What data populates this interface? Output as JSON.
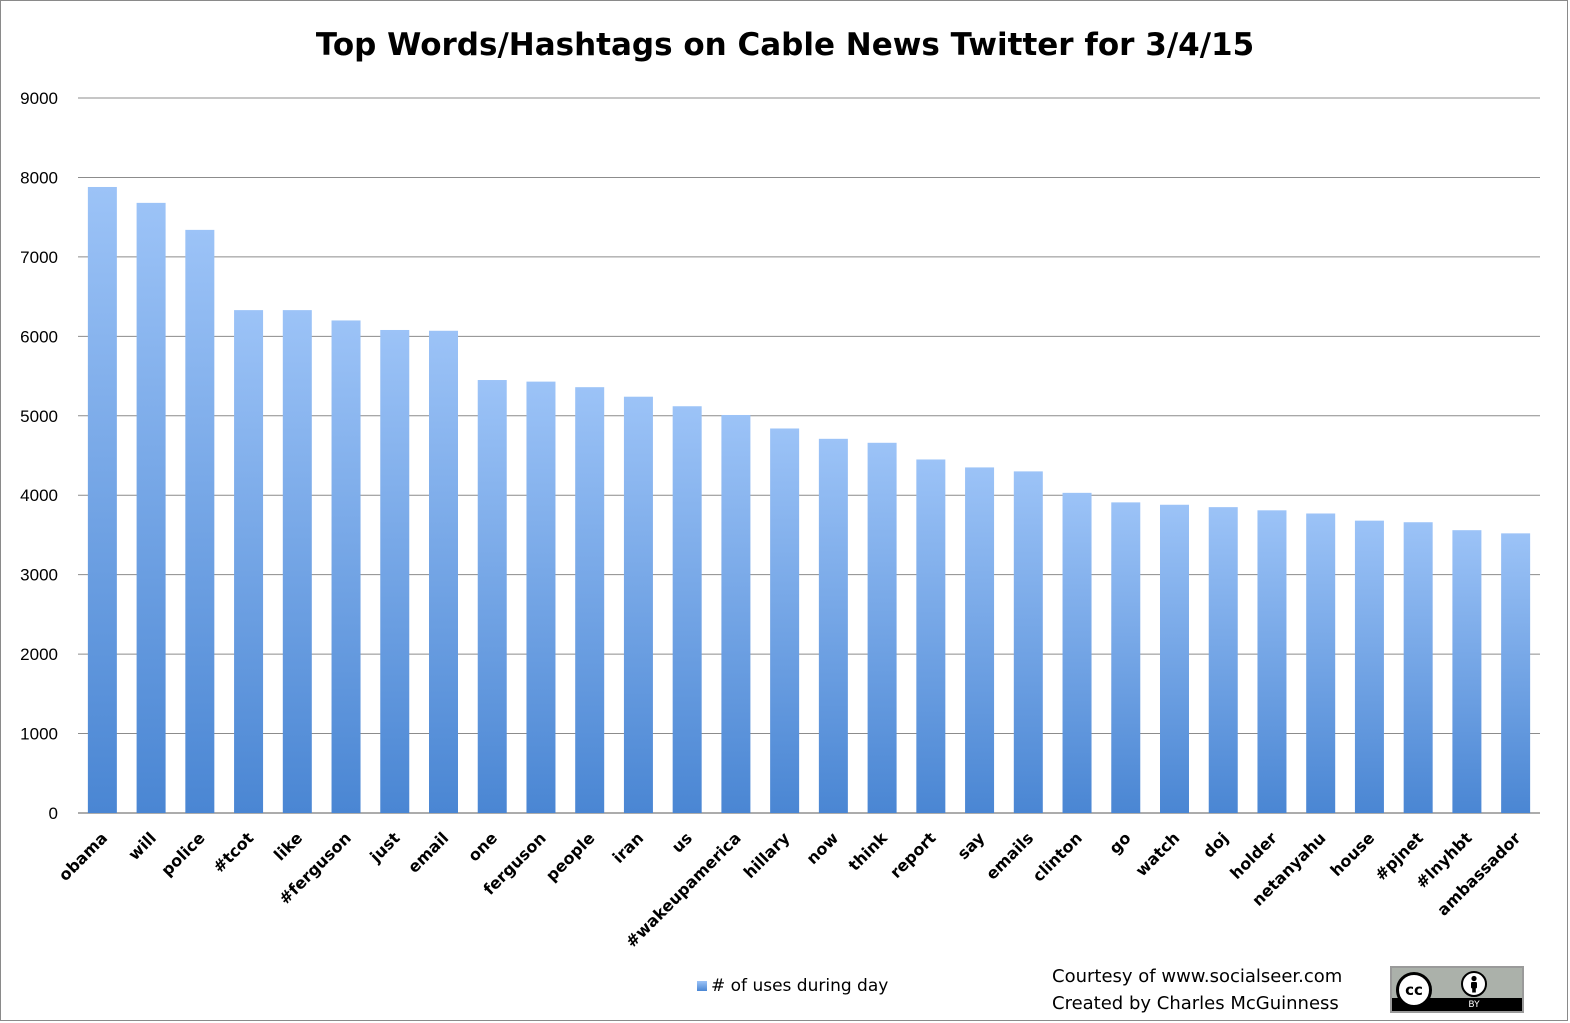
{
  "chart_data": {
    "type": "bar",
    "title": "Top Words/Hashtags on Cable News Twitter for 3/4/15",
    "categories": [
      "obama",
      "will",
      "police",
      "#tcot",
      "like",
      "#ferguson",
      "just",
      "email",
      "one",
      "ferguson",
      "people",
      "iran",
      "us",
      "#wakeupamerica",
      "hillary",
      "now",
      "think",
      "report",
      "say",
      "emails",
      "clinton",
      "go",
      "watch",
      "doj",
      "holder",
      "netanyahu",
      "house",
      "#pjnet",
      "#lnyhbt",
      "ambassador"
    ],
    "series": [
      {
        "name": "# of uses during day",
        "values": [
          7880,
          7680,
          7340,
          6330,
          6330,
          6200,
          6080,
          6070,
          5450,
          5430,
          5360,
          5240,
          5120,
          5010,
          4840,
          4710,
          4660,
          4450,
          4350,
          4300,
          4030,
          3910,
          3880,
          3850,
          3810,
          3770,
          3680,
          3660,
          3560,
          3520
        ]
      }
    ],
    "ylim": [
      0,
      9000
    ],
    "yticks": [
      0,
      1000,
      2000,
      3000,
      4000,
      5000,
      6000,
      7000,
      8000,
      9000
    ],
    "grid": true,
    "legend_position": "bottom",
    "colors": {
      "bar_top": "#9cc3f7",
      "bar_bottom": "#4a86d3",
      "grid": "#8c8c8c"
    }
  },
  "credits": {
    "line1": "Courtesy of www.socialseer.com",
    "line2": "Created by Charles McGuinness"
  },
  "cc_badge": {
    "cc_text": "cc",
    "by_text": "BY",
    "icon": "creative-commons-by-icon"
  }
}
